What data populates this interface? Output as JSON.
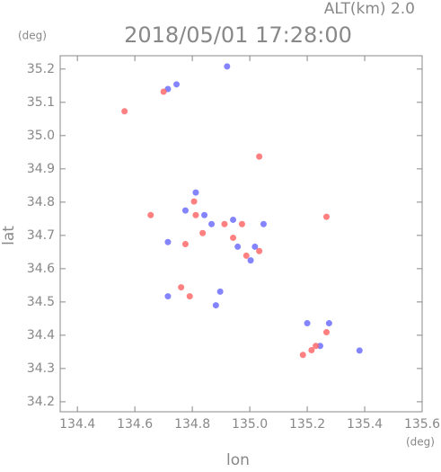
{
  "chart_data": {
    "type": "scatter",
    "title": "2018/05/01 17:28:00",
    "annotation": "ALT(km) 2.0",
    "y_unit": "(deg)",
    "x_unit": "(deg)",
    "x_label": "lon",
    "y_label": "lat",
    "xlim": [
      134.34,
      135.6
    ],
    "ylim": [
      34.17,
      35.24
    ],
    "xticks": [
      134.4,
      134.6,
      134.8,
      {
        "value": 135.0,
        "label": "135.0"
      },
      135.2,
      135.4,
      135.6
    ],
    "yticks": [
      34.2,
      34.3,
      34.4,
      34.5,
      34.6,
      34.7,
      34.8,
      34.9,
      {
        "value": 35.0,
        "label": "35.0"
      },
      35.1,
      35.2
    ],
    "series": [
      {
        "color": "#6f6fff",
        "x": [
          134.745,
          134.715,
          134.921,
          134.812,
          134.842,
          134.867,
          134.942,
          134.958,
          135.018,
          135.003,
          134.715,
          134.897,
          134.882,
          135.276,
          135.2,
          135.245,
          135.382,
          135.048,
          134.776,
          134.715
        ],
        "values": [
          35.154,
          35.14,
          35.208,
          34.829,
          34.761,
          34.734,
          34.747,
          34.666,
          34.666,
          34.625,
          34.517,
          34.531,
          34.49,
          34.436,
          34.436,
          34.368,
          34.354,
          34.734,
          34.775,
          34.68
        ]
      },
      {
        "color": "#ff6a6a",
        "x": [
          134.564,
          134.7,
          135.033,
          135.267,
          134.655,
          134.812,
          134.912,
          134.973,
          134.988,
          135.033,
          134.791,
          134.761,
          135.185,
          135.23,
          135.267,
          135.215,
          134.806,
          134.836,
          134.942,
          134.776
        ],
        "values": [
          35.073,
          35.132,
          34.937,
          34.756,
          34.761,
          34.761,
          34.734,
          34.734,
          34.639,
          34.653,
          34.517,
          34.544,
          34.341,
          34.368,
          34.409,
          34.355,
          34.802,
          34.707,
          34.693,
          34.674
        ]
      }
    ]
  }
}
